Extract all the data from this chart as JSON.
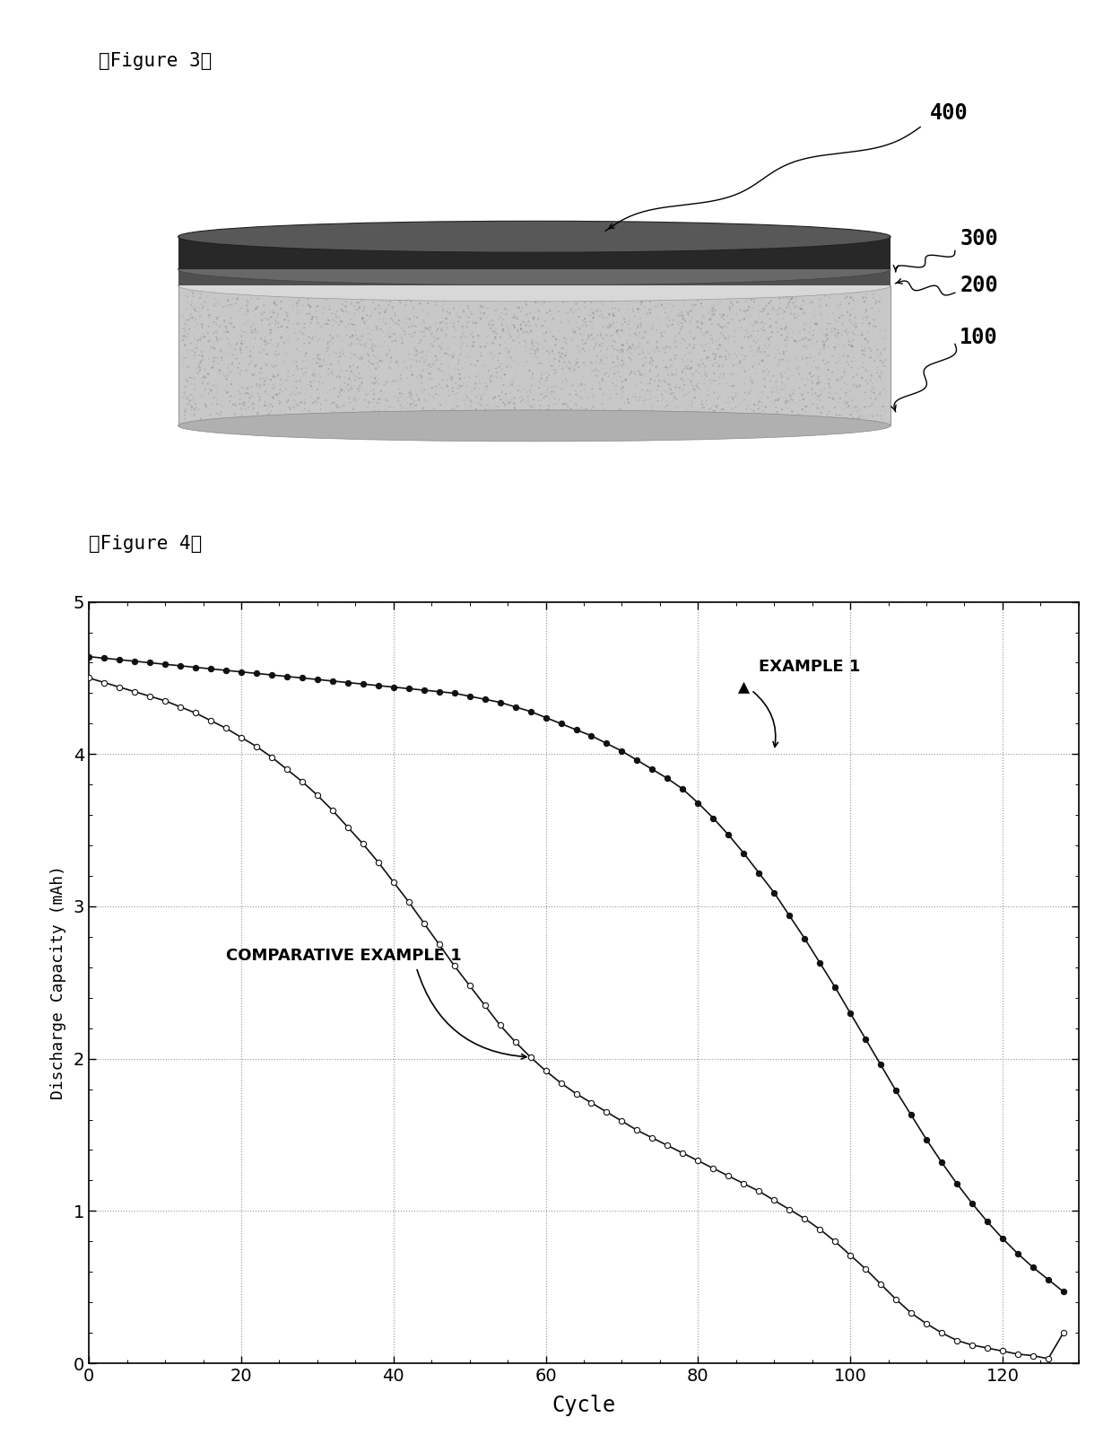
{
  "fig3_title": "『Figure 3』",
  "fig4_title": "『Figure 4』",
  "bg_color": "#ffffff",
  "chart_xlabel": "Cycle",
  "chart_ylabel": "Discharge Capacity (mAh)",
  "chart_xlim": [
    0,
    130
  ],
  "chart_ylim": [
    0,
    5
  ],
  "chart_xticks": [
    0,
    20,
    40,
    60,
    80,
    100,
    120
  ],
  "chart_yticks": [
    0,
    1,
    2,
    3,
    4,
    5
  ],
  "legend_example1": "EXAMPLE 1",
  "legend_comp1": "COMPARATIVE EXAMPLE 1",
  "example1_x": [
    0,
    2,
    4,
    6,
    8,
    10,
    12,
    14,
    16,
    18,
    20,
    22,
    24,
    26,
    28,
    30,
    32,
    34,
    36,
    38,
    40,
    42,
    44,
    46,
    48,
    50,
    52,
    54,
    56,
    58,
    60,
    62,
    64,
    66,
    68,
    70,
    72,
    74,
    76,
    78,
    80,
    82,
    84,
    86,
    88,
    90,
    92,
    94,
    96,
    98,
    100,
    102,
    104,
    106,
    108,
    110,
    112,
    114,
    116,
    118,
    120,
    122,
    124,
    126,
    128
  ],
  "example1_y": [
    4.64,
    4.63,
    4.62,
    4.61,
    4.6,
    4.59,
    4.58,
    4.57,
    4.56,
    4.55,
    4.54,
    4.53,
    4.52,
    4.51,
    4.5,
    4.49,
    4.48,
    4.47,
    4.46,
    4.45,
    4.44,
    4.43,
    4.42,
    4.41,
    4.4,
    4.38,
    4.36,
    4.34,
    4.31,
    4.28,
    4.24,
    4.2,
    4.16,
    4.12,
    4.07,
    4.02,
    3.96,
    3.9,
    3.84,
    3.77,
    3.68,
    3.58,
    3.47,
    3.35,
    3.22,
    3.09,
    2.94,
    2.79,
    2.63,
    2.47,
    2.3,
    2.13,
    1.96,
    1.79,
    1.63,
    1.47,
    1.32,
    1.18,
    1.05,
    0.93,
    0.82,
    0.72,
    0.63,
    0.55,
    0.47
  ],
  "comp1_x": [
    0,
    2,
    4,
    6,
    8,
    10,
    12,
    14,
    16,
    18,
    20,
    22,
    24,
    26,
    28,
    30,
    32,
    34,
    36,
    38,
    40,
    42,
    44,
    46,
    48,
    50,
    52,
    54,
    56,
    58,
    60,
    62,
    64,
    66,
    68,
    70,
    72,
    74,
    76,
    78,
    80,
    82,
    84,
    86,
    88,
    90,
    92,
    94,
    96,
    98,
    100,
    102,
    104,
    106,
    108,
    110,
    112,
    114,
    116,
    118,
    120,
    122,
    124,
    126,
    128
  ],
  "comp1_y": [
    4.5,
    4.47,
    4.44,
    4.41,
    4.38,
    4.35,
    4.31,
    4.27,
    4.22,
    4.17,
    4.11,
    4.05,
    3.98,
    3.9,
    3.82,
    3.73,
    3.63,
    3.52,
    3.41,
    3.29,
    3.16,
    3.03,
    2.89,
    2.75,
    2.61,
    2.48,
    2.35,
    2.22,
    2.11,
    2.01,
    1.92,
    1.84,
    1.77,
    1.71,
    1.65,
    1.59,
    1.53,
    1.48,
    1.43,
    1.38,
    1.33,
    1.28,
    1.23,
    1.18,
    1.13,
    1.07,
    1.01,
    0.95,
    0.88,
    0.8,
    0.71,
    0.62,
    0.52,
    0.42,
    0.33,
    0.26,
    0.2,
    0.15,
    0.12,
    0.1,
    0.08,
    0.06,
    0.05,
    0.03,
    0.2
  ],
  "line_color": "#111111",
  "grid_color": "#888888"
}
